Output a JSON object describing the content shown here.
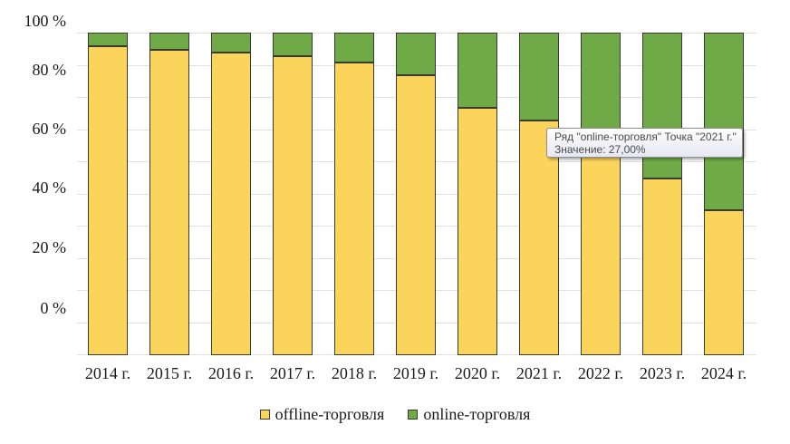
{
  "chart_data": {
    "type": "bar",
    "variant": "stacked-percent-columns",
    "title": "",
    "xlabel": "",
    "ylabel": "",
    "categories": [
      "2014 г.",
      "2015 г.",
      "2016 г.",
      "2017 г.",
      "2018 г.",
      "2019 г.",
      "2020 г.",
      "2021 г.",
      "2022 г.",
      "2023 г.",
      "2024 г."
    ],
    "series": [
      {
        "name": "offline-торговля",
        "color": "#FBD45C",
        "values": [
          96,
          95,
          94,
          93,
          91,
          87,
          77,
          73,
          65,
          55,
          45
        ]
      },
      {
        "name": "online-торговля",
        "color": "#70AA47",
        "values": [
          4,
          5,
          6,
          7,
          9,
          13,
          23,
          27,
          35,
          45,
          55
        ]
      }
    ],
    "unit": "%",
    "ylim": [
      0,
      100
    ],
    "y_tick_labels": [
      "100 %",
      "80 %",
      "60 %",
      "40 %",
      "20 %",
      "0 %"
    ],
    "grid": "horizontal minor lines every 10%",
    "legend_position": "bottom"
  },
  "tooltip": {
    "line1": "Ряд \"online-торговля\" Точка \"2021 г.\"",
    "line2": "Значение: 27,00%"
  },
  "legend": {
    "items": [
      {
        "label": "offline-торговля",
        "color": "#FBD45C"
      },
      {
        "label": "online-торговля",
        "color": "#70AA47"
      }
    ]
  },
  "colors": {
    "background": "#FFFFFF",
    "gridline": "#E0E0E0",
    "bar_border": "#3A3A32",
    "text": "#1A1A1A",
    "tooltip_border": "#8F8F8F",
    "tooltip_bg_top": "#FEFEFE",
    "tooltip_bg_bottom": "#E6E7F2",
    "tooltip_text": "#4B4B4B"
  }
}
